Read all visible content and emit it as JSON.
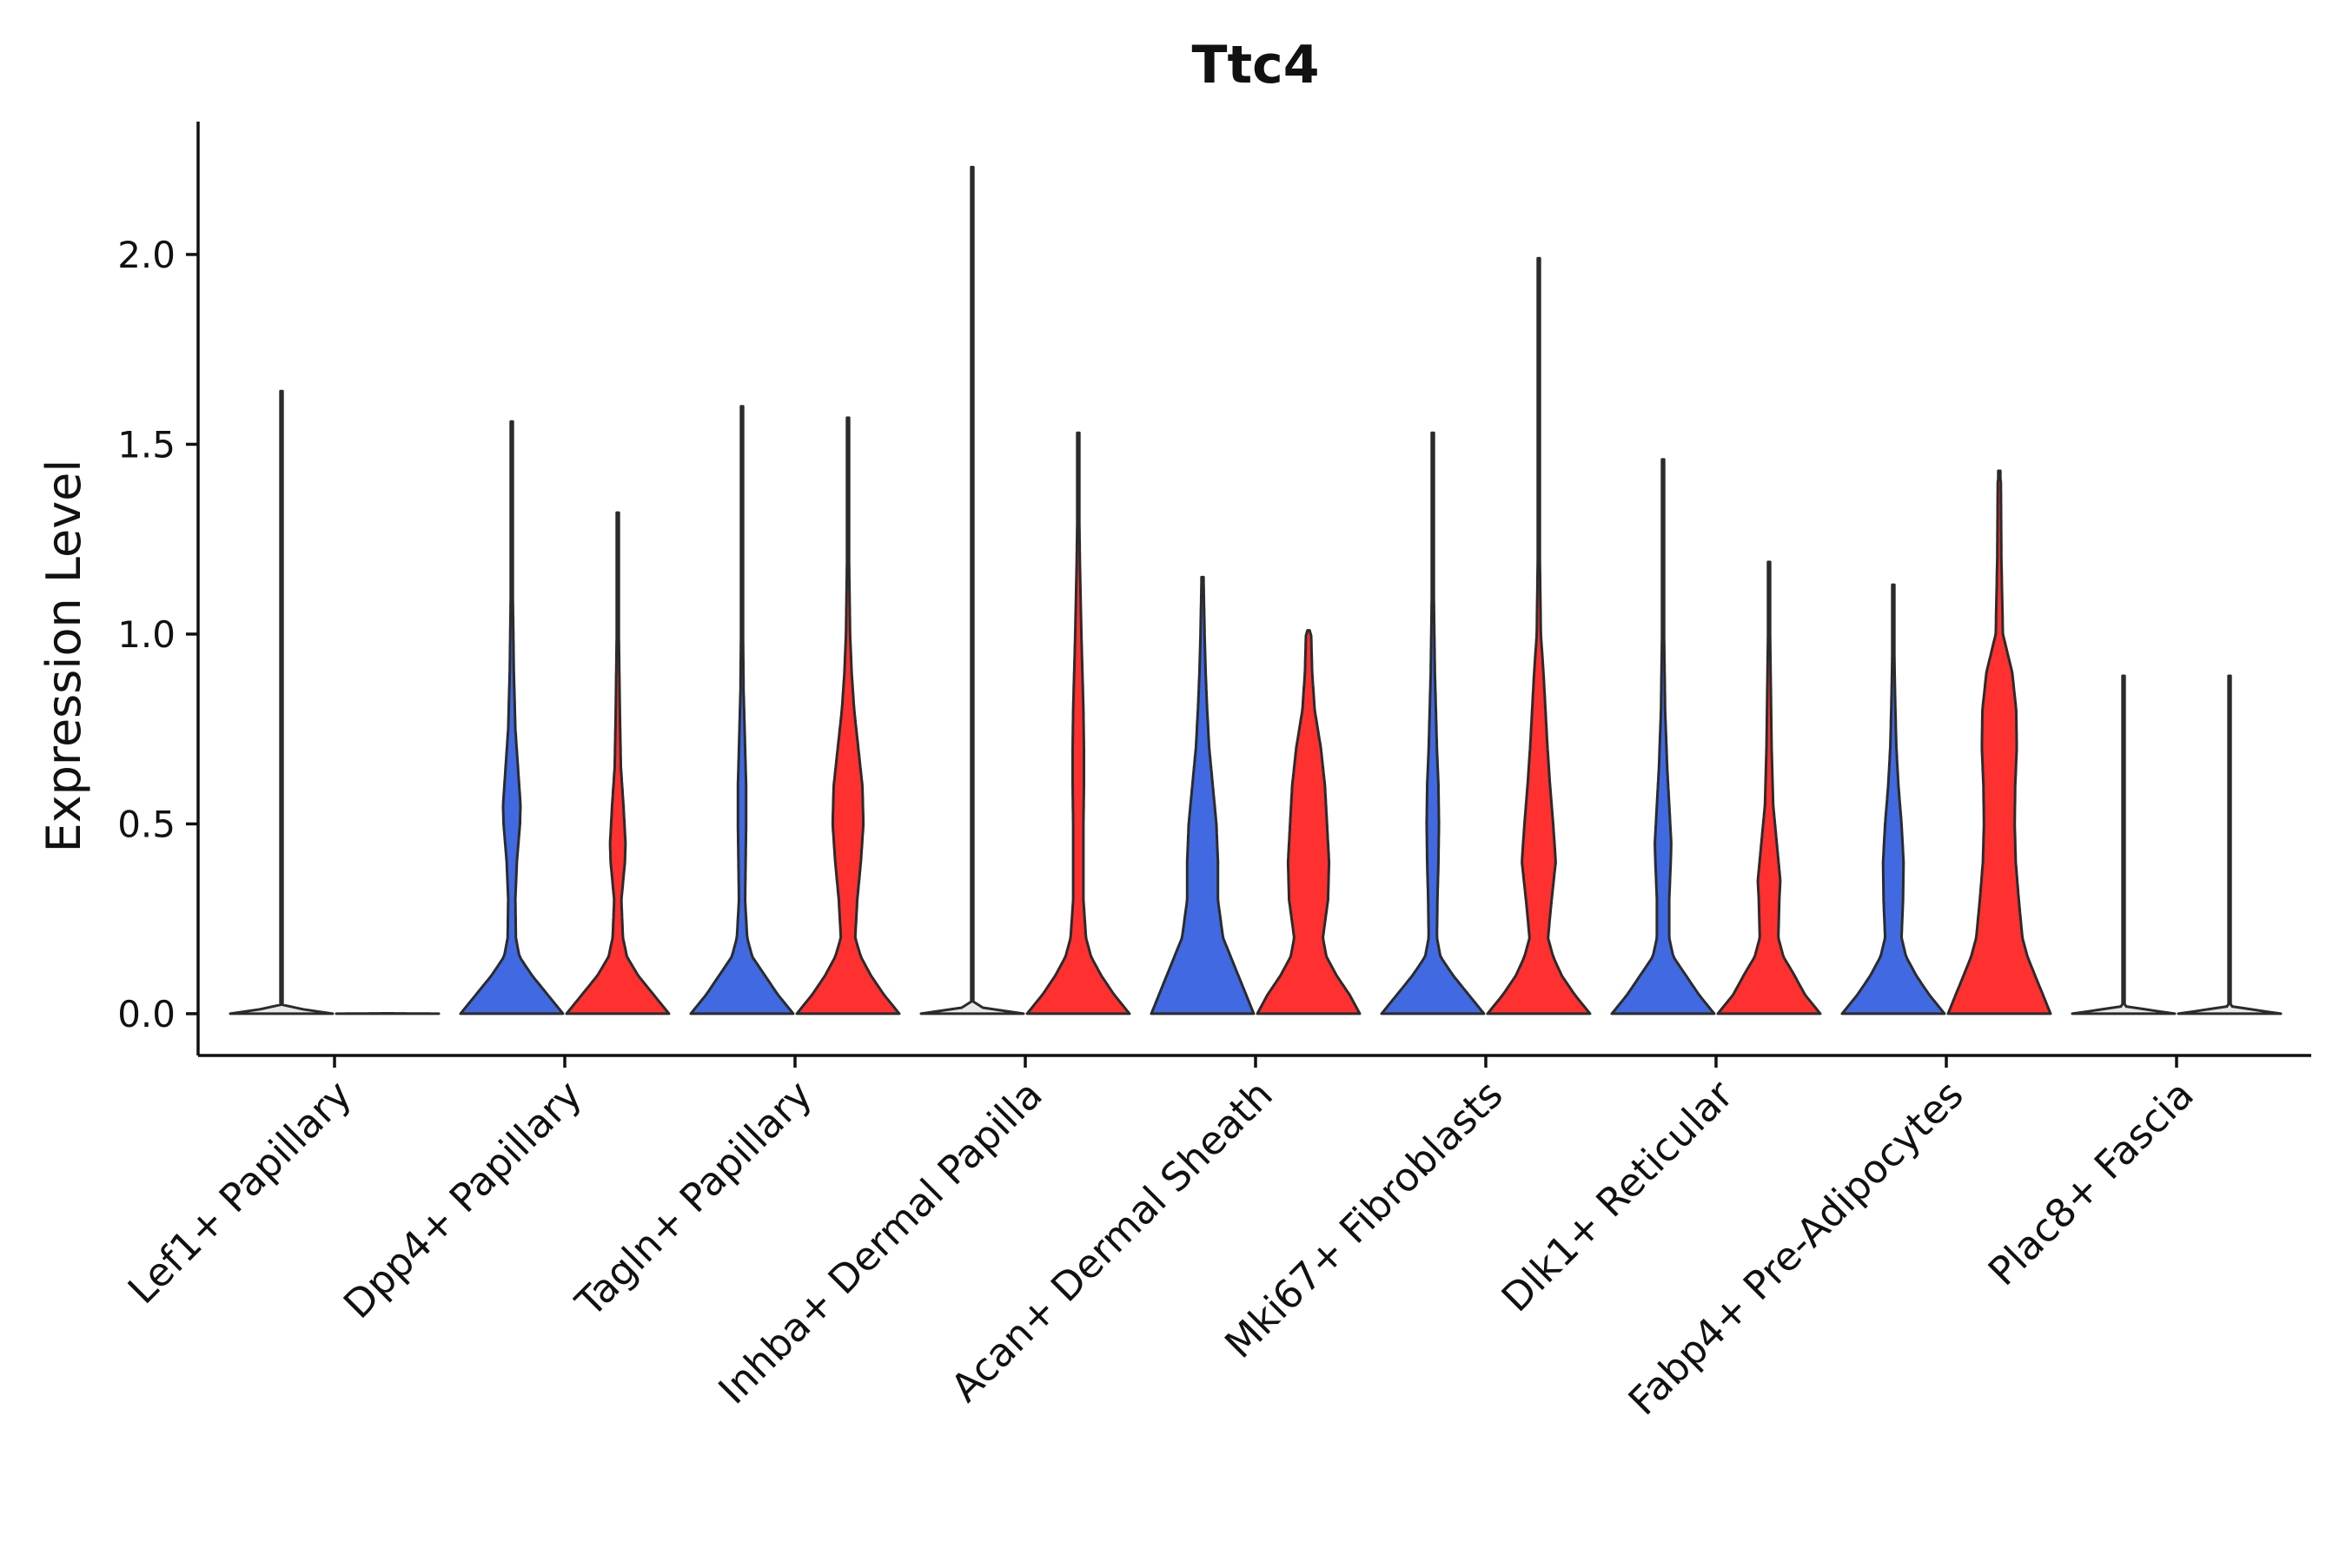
{
  "chart_data": {
    "type": "violin",
    "title": "Ttc4",
    "ylabel": "Expression Level",
    "xlabel": "",
    "ylim": [
      -0.11,
      2.35
    ],
    "yticks": [
      0.0,
      0.5,
      1.0,
      1.5,
      2.0
    ],
    "ytick_labels": [
      "0.0",
      "0.5",
      "1.0",
      "1.5",
      "2.0"
    ],
    "legend": "none",
    "group_colors": {
      "blue": "#4169E1",
      "red": "#FF3030",
      "gray": "#E8E8E8"
    },
    "categories": [
      "Lef1+ Papillary",
      "Dpp4+ Papillary",
      "Tagln+ Papillary",
      "Inhba+ Dermal Papilla",
      "Acan+ Dermal Sheath",
      "Mki67+ Fibroblasts",
      "Dlk1+ Reticular",
      "Fabp4+ Pre-Adipocytes",
      "Plac8+ Fascia"
    ],
    "violins": [
      {
        "category_index": 0,
        "side": "left",
        "color": "gray",
        "max": 1.64,
        "profile": [
          [
            0,
            1.0
          ],
          [
            0.02,
            0.005
          ],
          [
            0.1,
            0.003
          ],
          [
            0.5,
            0.002
          ],
          [
            1.0,
            0.002
          ],
          [
            1.64,
            0.002
          ]
        ]
      },
      {
        "category_index": 0,
        "side": "right",
        "color": "gray",
        "max": 0.001,
        "profile": [
          [
            0,
            1.0
          ],
          [
            0.001,
            0.0
          ]
        ]
      },
      {
        "category_index": 1,
        "side": "left",
        "color": "blue",
        "max": 1.56,
        "profile": [
          [
            0,
            1.0
          ],
          [
            0.05,
            0.7
          ],
          [
            0.1,
            0.4
          ],
          [
            0.15,
            0.15
          ],
          [
            0.2,
            0.08
          ],
          [
            0.3,
            0.07
          ],
          [
            0.4,
            0.1
          ],
          [
            0.5,
            0.16
          ],
          [
            0.55,
            0.17
          ],
          [
            0.65,
            0.12
          ],
          [
            0.75,
            0.07
          ],
          [
            0.9,
            0.04
          ],
          [
            1.1,
            0.02
          ],
          [
            1.3,
            0.01
          ],
          [
            1.56,
            0.005
          ]
        ]
      },
      {
        "category_index": 1,
        "side": "right",
        "color": "red",
        "max": 1.32,
        "profile": [
          [
            0,
            1.0
          ],
          [
            0.05,
            0.7
          ],
          [
            0.1,
            0.4
          ],
          [
            0.15,
            0.18
          ],
          [
            0.2,
            0.1
          ],
          [
            0.3,
            0.07
          ],
          [
            0.4,
            0.14
          ],
          [
            0.45,
            0.15
          ],
          [
            0.55,
            0.11
          ],
          [
            0.65,
            0.06
          ],
          [
            0.8,
            0.04
          ],
          [
            1.0,
            0.02
          ],
          [
            1.15,
            0.01
          ],
          [
            1.32,
            0.005
          ]
        ]
      },
      {
        "category_index": 2,
        "side": "left",
        "color": "blue",
        "max": 1.6,
        "profile": [
          [
            0,
            1.0
          ],
          [
            0.05,
            0.7
          ],
          [
            0.1,
            0.45
          ],
          [
            0.15,
            0.2
          ],
          [
            0.2,
            0.1
          ],
          [
            0.3,
            0.06
          ],
          [
            0.4,
            0.07
          ],
          [
            0.5,
            0.08
          ],
          [
            0.6,
            0.08
          ],
          [
            0.7,
            0.06
          ],
          [
            0.85,
            0.03
          ],
          [
            1.0,
            0.02
          ],
          [
            1.3,
            0.01
          ],
          [
            1.6,
            0.005
          ]
        ]
      },
      {
        "category_index": 2,
        "side": "right",
        "color": "red",
        "max": 1.57,
        "profile": [
          [
            0,
            1.0
          ],
          [
            0.05,
            0.7
          ],
          [
            0.1,
            0.45
          ],
          [
            0.15,
            0.25
          ],
          [
            0.2,
            0.14
          ],
          [
            0.3,
            0.18
          ],
          [
            0.4,
            0.25
          ],
          [
            0.5,
            0.3
          ],
          [
            0.6,
            0.28
          ],
          [
            0.7,
            0.2
          ],
          [
            0.8,
            0.12
          ],
          [
            0.9,
            0.07
          ],
          [
            1.0,
            0.04
          ],
          [
            1.2,
            0.02
          ],
          [
            1.4,
            0.01
          ],
          [
            1.57,
            0.005
          ]
        ]
      },
      {
        "category_index": 3,
        "side": "left",
        "color": "gray",
        "max": 2.23,
        "profile": [
          [
            0,
            1.0
          ],
          [
            0.02,
            0.005
          ],
          [
            0.1,
            0.003
          ],
          [
            1.0,
            0.002
          ],
          [
            2.23,
            0.002
          ]
        ]
      },
      {
        "category_index": 3,
        "side": "right",
        "color": "red",
        "max": 1.53,
        "profile": [
          [
            0,
            1.0
          ],
          [
            0.05,
            0.7
          ],
          [
            0.1,
            0.45
          ],
          [
            0.15,
            0.25
          ],
          [
            0.2,
            0.15
          ],
          [
            0.3,
            0.1
          ],
          [
            0.4,
            0.1
          ],
          [
            0.5,
            0.1
          ],
          [
            0.6,
            0.11
          ],
          [
            0.7,
            0.11
          ],
          [
            0.8,
            0.1
          ],
          [
            0.9,
            0.08
          ],
          [
            1.0,
            0.06
          ],
          [
            1.2,
            0.03
          ],
          [
            1.4,
            0.01
          ],
          [
            1.53,
            0.005
          ]
        ]
      },
      {
        "category_index": 4,
        "side": "left",
        "color": "blue",
        "max": 1.15,
        "profile": [
          [
            0,
            1.0
          ],
          [
            0.05,
            0.85
          ],
          [
            0.1,
            0.7
          ],
          [
            0.15,
            0.55
          ],
          [
            0.2,
            0.4
          ],
          [
            0.3,
            0.3
          ],
          [
            0.4,
            0.3
          ],
          [
            0.5,
            0.27
          ],
          [
            0.6,
            0.2
          ],
          [
            0.7,
            0.13
          ],
          [
            0.8,
            0.09
          ],
          [
            0.9,
            0.06
          ],
          [
            1.0,
            0.04
          ],
          [
            1.14,
            0.02
          ],
          [
            1.15,
            0.0
          ]
        ]
      },
      {
        "category_index": 4,
        "side": "right",
        "color": "red",
        "max": 1.01,
        "profile": [
          [
            0,
            1.0
          ],
          [
            0.05,
            0.8
          ],
          [
            0.1,
            0.55
          ],
          [
            0.15,
            0.35
          ],
          [
            0.2,
            0.28
          ],
          [
            0.3,
            0.38
          ],
          [
            0.4,
            0.4
          ],
          [
            0.5,
            0.36
          ],
          [
            0.6,
            0.32
          ],
          [
            0.7,
            0.24
          ],
          [
            0.8,
            0.12
          ],
          [
            0.9,
            0.07
          ],
          [
            1.0,
            0.05
          ],
          [
            1.01,
            0.0
          ]
        ]
      },
      {
        "category_index": 5,
        "side": "left",
        "color": "blue",
        "max": 1.53,
        "profile": [
          [
            0,
            1.0
          ],
          [
            0.05,
            0.7
          ],
          [
            0.1,
            0.4
          ],
          [
            0.15,
            0.15
          ],
          [
            0.2,
            0.08
          ],
          [
            0.3,
            0.09
          ],
          [
            0.4,
            0.11
          ],
          [
            0.5,
            0.12
          ],
          [
            0.6,
            0.11
          ],
          [
            0.7,
            0.08
          ],
          [
            0.8,
            0.06
          ],
          [
            0.9,
            0.04
          ],
          [
            1.1,
            0.02
          ],
          [
            1.3,
            0.01
          ],
          [
            1.53,
            0.005
          ]
        ]
      },
      {
        "category_index": 5,
        "side": "right",
        "color": "red",
        "max": 1.99,
        "profile": [
          [
            0,
            1.0
          ],
          [
            0.05,
            0.7
          ],
          [
            0.1,
            0.45
          ],
          [
            0.15,
            0.28
          ],
          [
            0.2,
            0.18
          ],
          [
            0.3,
            0.25
          ],
          [
            0.4,
            0.33
          ],
          [
            0.5,
            0.28
          ],
          [
            0.6,
            0.22
          ],
          [
            0.7,
            0.17
          ],
          [
            0.8,
            0.13
          ],
          [
            0.9,
            0.09
          ],
          [
            1.0,
            0.04
          ],
          [
            1.2,
            0.02
          ],
          [
            1.5,
            0.01
          ],
          [
            1.99,
            0.004
          ]
        ]
      },
      {
        "category_index": 6,
        "side": "left",
        "color": "blue",
        "max": 1.46,
        "profile": [
          [
            0,
            1.0
          ],
          [
            0.05,
            0.7
          ],
          [
            0.1,
            0.45
          ],
          [
            0.15,
            0.2
          ],
          [
            0.2,
            0.12
          ],
          [
            0.3,
            0.12
          ],
          [
            0.4,
            0.15
          ],
          [
            0.45,
            0.16
          ],
          [
            0.55,
            0.12
          ],
          [
            0.65,
            0.08
          ],
          [
            0.8,
            0.04
          ],
          [
            1.0,
            0.02
          ],
          [
            1.2,
            0.01
          ],
          [
            1.46,
            0.005
          ]
        ]
      },
      {
        "category_index": 6,
        "side": "right",
        "color": "red",
        "max": 1.19,
        "profile": [
          [
            0,
            1.0
          ],
          [
            0.05,
            0.7
          ],
          [
            0.1,
            0.5
          ],
          [
            0.15,
            0.28
          ],
          [
            0.2,
            0.18
          ],
          [
            0.3,
            0.2
          ],
          [
            0.35,
            0.22
          ],
          [
            0.45,
            0.15
          ],
          [
            0.55,
            0.08
          ],
          [
            0.7,
            0.05
          ],
          [
            0.9,
            0.03
          ],
          [
            1.05,
            0.015
          ],
          [
            1.19,
            0.005
          ]
        ]
      },
      {
        "category_index": 7,
        "side": "left",
        "color": "blue",
        "max": 1.13,
        "profile": [
          [
            0,
            1.0
          ],
          [
            0.05,
            0.7
          ],
          [
            0.1,
            0.45
          ],
          [
            0.15,
            0.25
          ],
          [
            0.2,
            0.16
          ],
          [
            0.3,
            0.19
          ],
          [
            0.4,
            0.2
          ],
          [
            0.5,
            0.16
          ],
          [
            0.6,
            0.1
          ],
          [
            0.7,
            0.06
          ],
          [
            0.8,
            0.04
          ],
          [
            0.9,
            0.025
          ],
          [
            1.0,
            0.015
          ],
          [
            1.13,
            0.005
          ]
        ]
      },
      {
        "category_index": 7,
        "side": "right",
        "color": "red",
        "max": 1.43,
        "profile": [
          [
            0,
            1.0
          ],
          [
            0.05,
            0.85
          ],
          [
            0.1,
            0.7
          ],
          [
            0.15,
            0.55
          ],
          [
            0.2,
            0.45
          ],
          [
            0.3,
            0.38
          ],
          [
            0.4,
            0.32
          ],
          [
            0.5,
            0.3
          ],
          [
            0.6,
            0.31
          ],
          [
            0.7,
            0.34
          ],
          [
            0.8,
            0.33
          ],
          [
            0.9,
            0.25
          ],
          [
            1.0,
            0.07
          ],
          [
            1.2,
            0.04
          ],
          [
            1.4,
            0.03
          ],
          [
            1.43,
            0.0
          ]
        ]
      },
      {
        "category_index": 8,
        "side": "left",
        "color": "gray",
        "max": 0.89,
        "profile": [
          [
            0,
            1.0
          ],
          [
            0.02,
            0.005
          ],
          [
            0.1,
            0.003
          ],
          [
            0.5,
            0.002
          ],
          [
            0.89,
            0.002
          ]
        ]
      },
      {
        "category_index": 8,
        "side": "right",
        "color": "gray",
        "max": 0.89,
        "profile": [
          [
            0,
            1.0
          ],
          [
            0.02,
            0.005
          ],
          [
            0.1,
            0.003
          ],
          [
            0.5,
            0.002
          ],
          [
            0.89,
            0.002
          ]
        ]
      }
    ]
  }
}
